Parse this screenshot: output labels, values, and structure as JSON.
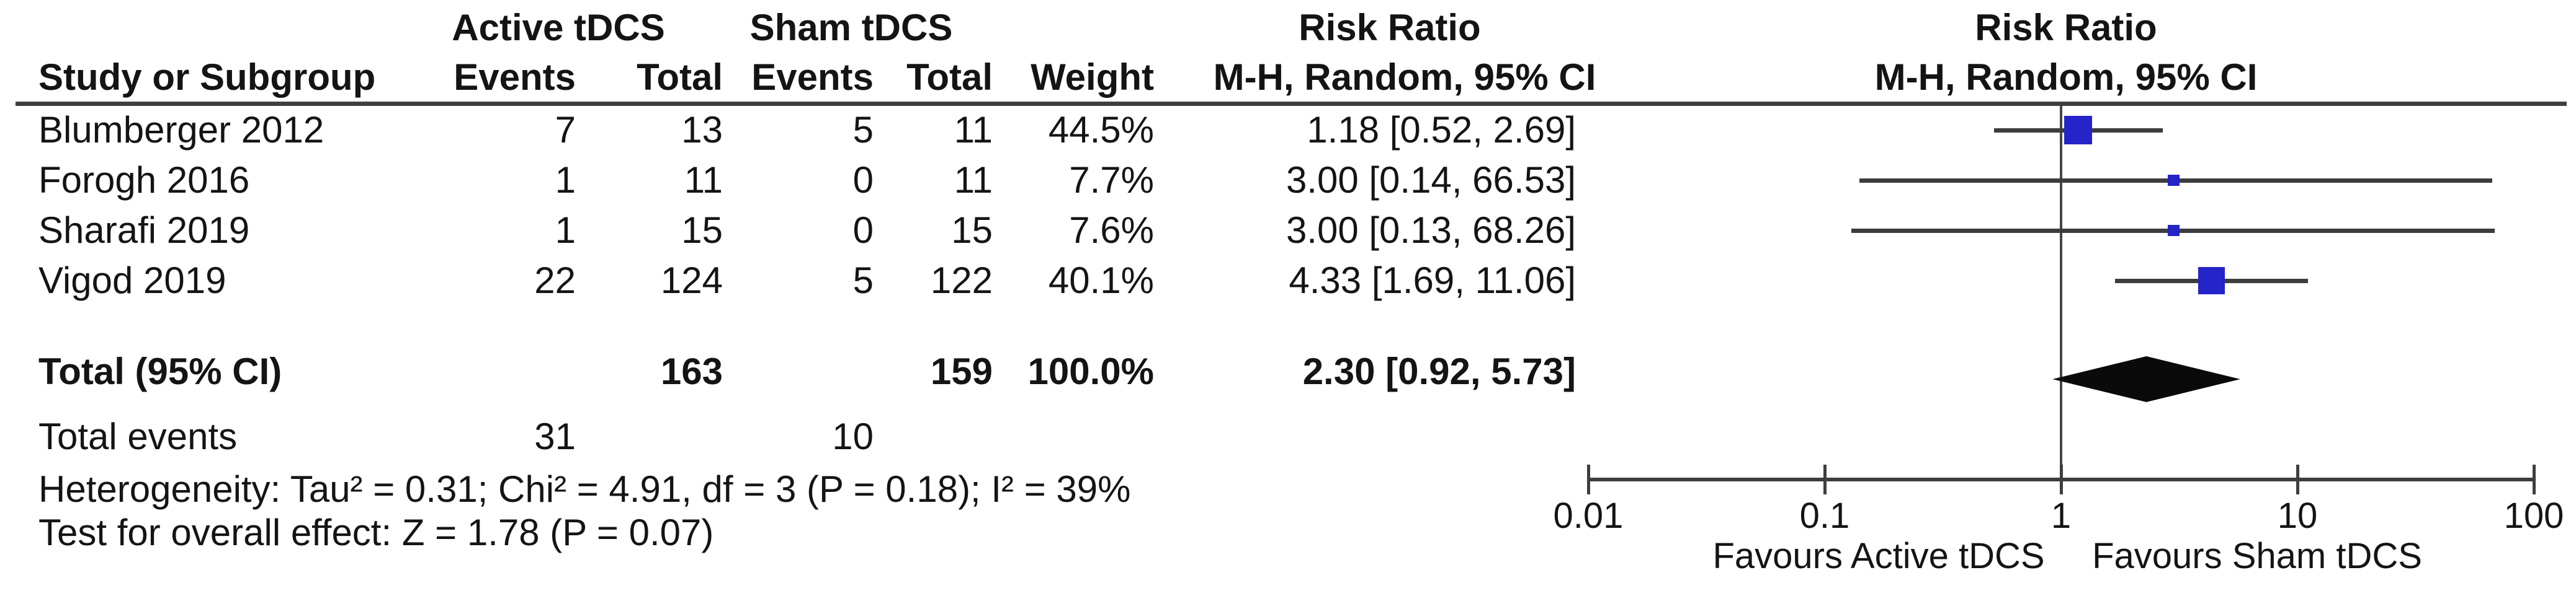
{
  "table": {
    "col_group_active": "Active tDCS",
    "col_group_sham": "Sham tDCS",
    "study_col": "Study or Subgroup",
    "events_col": "Events",
    "total_col": "Total",
    "weight_col": "Weight"
  },
  "chart_data": {
    "type": "forest",
    "scale": "log",
    "effect_label": "Risk Ratio",
    "method_label": "M-H, Random, 95% CI",
    "null_line": 1,
    "x_axis": {
      "xlim": [
        0.01,
        100
      ],
      "ticks": [
        0.01,
        0.1,
        1,
        10,
        100
      ],
      "tick_labels": [
        "0.01",
        "0.1",
        "1",
        "10",
        "100"
      ]
    },
    "studies": [
      {
        "name": "Blumberger 2012",
        "active_events": "7",
        "active_total": "13",
        "sham_events": "5",
        "sham_total": "11",
        "weight_label": "44.5%",
        "weight_pct": 44.5,
        "estimate": 1.18,
        "ci_low": 0.52,
        "ci_high": 2.69,
        "estimate_label": "1.18 [0.52, 2.69]"
      },
      {
        "name": "Forogh 2016",
        "active_events": "1",
        "active_total": "11",
        "sham_events": "0",
        "sham_total": "11",
        "weight_label": "7.7%",
        "weight_pct": 7.7,
        "estimate": 3.0,
        "ci_low": 0.14,
        "ci_high": 66.53,
        "estimate_label": "3.00 [0.14, 66.53]"
      },
      {
        "name": "Sharafi 2019",
        "active_events": "1",
        "active_total": "15",
        "sham_events": "0",
        "sham_total": "15",
        "weight_label": "7.6%",
        "weight_pct": 7.6,
        "estimate": 3.0,
        "ci_low": 0.13,
        "ci_high": 68.26,
        "estimate_label": "3.00 [0.13, 68.26]"
      },
      {
        "name": "Vigod 2019",
        "active_events": "22",
        "active_total": "124",
        "sham_events": "5",
        "sham_total": "122",
        "weight_label": "40.1%",
        "weight_pct": 40.1,
        "estimate": 4.33,
        "ci_low": 1.69,
        "ci_high": 11.06,
        "estimate_label": "4.33 [1.69, 11.06]"
      }
    ],
    "total": {
      "label": "Total (95% CI)",
      "active_total": "163",
      "sham_total": "159",
      "weight_label": "100.0%",
      "estimate": 2.3,
      "ci_low": 0.92,
      "ci_high": 5.73,
      "estimate_label": "2.30 [0.92, 5.73]"
    },
    "total_events": {
      "label": "Total events",
      "active": "31",
      "sham": "10"
    },
    "heterogeneity": "Heterogeneity: Tau² = 0.31; Chi² = 4.91, df = 3 (P = 0.18); I² = 39%",
    "overall_effect": "Test for overall effect: Z = 1.78 (P = 0.07)",
    "favours_left": "Favours Active tDCS",
    "favours_right": "Favours Sham tDCS",
    "marker_color": "#2424c8",
    "line_color": "#3d3d3d",
    "diamond_color": "#0a0a0a"
  }
}
